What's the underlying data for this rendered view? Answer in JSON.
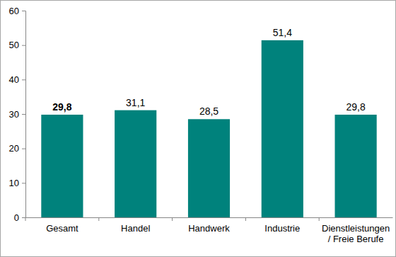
{
  "chart_data": {
    "type": "bar",
    "categories": [
      "Gesamt",
      "Handel",
      "Handwerk",
      "Industrie",
      "Dienstleistungen / Freie Berufe"
    ],
    "values": [
      29.8,
      31.1,
      28.5,
      51.4,
      29.8
    ],
    "value_labels": [
      "29,8",
      "31,1",
      "28,5",
      "51,4",
      "29,8"
    ],
    "data_labels": true,
    "color": "#00827c",
    "ylim": [
      0,
      60
    ],
    "yticks": [
      0,
      10,
      20,
      30,
      40,
      50,
      60
    ],
    "grid": false
  }
}
